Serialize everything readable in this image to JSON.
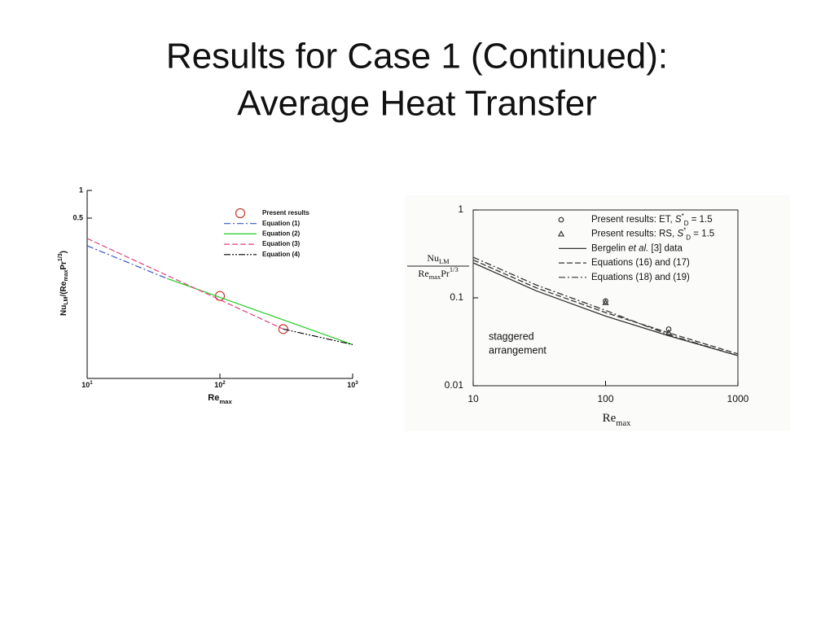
{
  "title": [
    "Results for Case 1 (Continued):",
    "Average Heat Transfer"
  ],
  "chart_data": [
    {
      "type": "line",
      "xlog": true,
      "ylog": true,
      "xlim": [
        10,
        1000
      ],
      "ylim": [
        0.009,
        1
      ],
      "xticks": [
        {
          "value": 10,
          "label": "10",
          "exp": "1"
        },
        {
          "value": 100,
          "label": "10",
          "exp": "2"
        },
        {
          "value": 1000,
          "label": "10",
          "exp": "3"
        }
      ],
      "yticks": [
        1,
        0.5
      ],
      "xlabel": [
        {
          "text": "Re"
        },
        {
          "text": "max",
          "style": "sub"
        }
      ],
      "ylabel": [
        {
          "text": "Nu"
        },
        {
          "text": "LM",
          "style": "sub"
        },
        {
          "text": "/(Re"
        },
        {
          "text": "max",
          "style": "sub"
        },
        {
          "text": "Pr"
        },
        {
          "text": "1/3",
          "style": "sup"
        },
        {
          "text": ")"
        }
      ],
      "series": [
        {
          "name": "Present results",
          "color": "#c0392b",
          "marker": "circle",
          "line": "none",
          "x": [
            100,
            300
          ],
          "values": [
            0.071,
            0.031
          ]
        },
        {
          "name": "Equation (1)",
          "color": "#3355cc",
          "line": "dashdot",
          "x": [
            10,
            40
          ],
          "values": [
            0.25,
            0.11
          ]
        },
        {
          "name": "Equation (2)",
          "color": "#22cc22",
          "line": "solid",
          "x": [
            40,
            1000
          ],
          "values": [
            0.11,
            0.021
          ]
        },
        {
          "name": "Equation (3)",
          "color": "#e0407a",
          "line": "dashed",
          "x": [
            10,
            300
          ],
          "values": [
            0.3,
            0.031
          ]
        },
        {
          "name": "Equation (4)",
          "color": "#000000",
          "line": "dashdotdot",
          "x": [
            300,
            1000
          ],
          "values": [
            0.031,
            0.021
          ]
        }
      ]
    },
    {
      "type": "line",
      "xlog": true,
      "ylog": true,
      "xlim": [
        10,
        1000
      ],
      "ylim": [
        0.01,
        1
      ],
      "xticks": [
        10,
        100,
        1000
      ],
      "yticks": [
        0.01,
        0.1,
        1
      ],
      "xlabel": [
        {
          "text": "Re"
        },
        {
          "text": "max",
          "style": "sub"
        }
      ],
      "ylabel": {
        "numerator": [
          {
            "text": "Nu"
          },
          {
            "text": "LM",
            "style": "sub"
          }
        ],
        "denominator": [
          {
            "text": "Re"
          },
          {
            "text": "max",
            "style": "sub"
          },
          {
            "text": "Pr"
          },
          {
            "text": "1/3",
            "style": "sup"
          }
        ]
      },
      "annotation": [
        "staggered",
        "arrangement"
      ],
      "series": [
        {
          "name": [
            {
              "text": "Present results:  ET, "
            },
            {
              "text": "S",
              "style": "italic"
            },
            {
              "text": "*",
              "style": "sup"
            },
            {
              "text": "D",
              "style": "sub"
            },
            {
              "text": " = 1.5"
            }
          ],
          "color": "#333333",
          "marker": "circle",
          "line": "none",
          "x": [
            100,
            300
          ],
          "values": [
            0.092,
            0.044
          ]
        },
        {
          "name": [
            {
              "text": "Present results:  RS, "
            },
            {
              "text": "S",
              "style": "italic"
            },
            {
              "text": "*",
              "style": "sup"
            },
            {
              "text": "D",
              "style": "sub"
            },
            {
              "text": " = 1.5"
            }
          ],
          "color": "#333333",
          "marker": "triangle",
          "line": "none",
          "x": [
            100,
            300
          ],
          "values": [
            0.088,
            0.04
          ]
        },
        {
          "name": [
            {
              "text": "Bergelin "
            },
            {
              "text": "et al.",
              "style": "italic"
            },
            {
              "text": " [3] data"
            }
          ],
          "color": "#333333",
          "line": "solid",
          "x": [
            10,
            30,
            100,
            300,
            1000
          ],
          "values": [
            0.25,
            0.12,
            0.062,
            0.037,
            0.022
          ]
        },
        {
          "name": "Equations (16) and (17)",
          "color": "#333333",
          "line": "dashed",
          "x": [
            10,
            30,
            100,
            300,
            1000
          ],
          "values": [
            0.27,
            0.13,
            0.068,
            0.04,
            0.023
          ]
        },
        {
          "name": "Equations (18) and (19)",
          "color": "#333333",
          "line": "dashdot",
          "x": [
            10,
            30,
            100,
            300,
            1000
          ],
          "values": [
            0.29,
            0.14,
            0.072,
            0.038,
            0.022
          ]
        }
      ]
    }
  ]
}
